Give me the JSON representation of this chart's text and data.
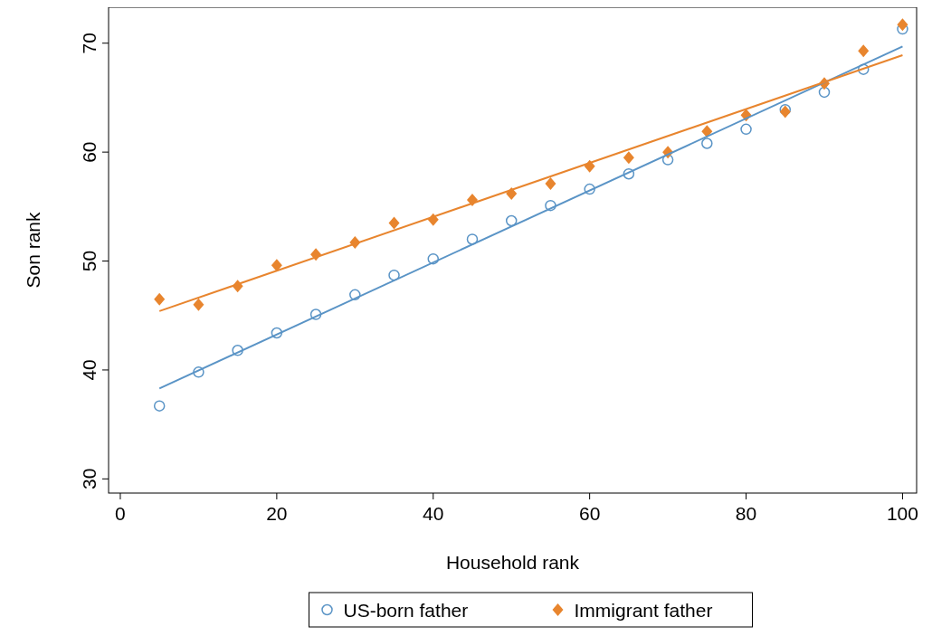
{
  "chart_data": {
    "type": "scatter",
    "xlabel": "Household rank",
    "ylabel": "Son rank",
    "xlim": [
      -1.5,
      101.8
    ],
    "ylim": [
      28.7,
      73.3
    ],
    "xticks": [
      0,
      20,
      40,
      60,
      80,
      100
    ],
    "yticks": [
      30,
      40,
      50,
      60,
      70
    ],
    "grid": false,
    "legend": "bottom",
    "series": [
      {
        "name": "US-born father",
        "marker": "circle",
        "color": "#5a94c6",
        "x": [
          5,
          10,
          15,
          20,
          25,
          30,
          35,
          40,
          45,
          50,
          55,
          60,
          65,
          70,
          75,
          80,
          85,
          90,
          95,
          100
        ],
        "values": [
          36.7,
          39.8,
          41.8,
          43.4,
          45.1,
          46.9,
          48.7,
          50.2,
          52.0,
          53.7,
          55.1,
          56.6,
          58.0,
          59.3,
          60.8,
          62.1,
          63.9,
          65.5,
          67.6,
          71.3
        ]
      },
      {
        "name": "Immigrant father",
        "marker": "diamond",
        "color": "#e8852e",
        "x": [
          5,
          10,
          15,
          20,
          25,
          30,
          35,
          40,
          45,
          50,
          55,
          60,
          65,
          70,
          75,
          80,
          85,
          90,
          95,
          100
        ],
        "values": [
          46.5,
          46.0,
          47.7,
          49.6,
          50.6,
          51.7,
          53.5,
          53.8,
          55.6,
          56.2,
          57.1,
          58.7,
          59.5,
          60.0,
          61.9,
          63.4,
          63.7,
          66.3,
          69.3,
          71.7
        ]
      },
      {
        "type": "line",
        "color": "#5a94c6",
        "x": [
          5,
          100
        ],
        "values": [
          38.3,
          69.7
        ]
      },
      {
        "type": "line",
        "color": "#e8852e",
        "x": [
          5,
          100
        ],
        "values": [
          45.4,
          68.9
        ]
      }
    ]
  }
}
